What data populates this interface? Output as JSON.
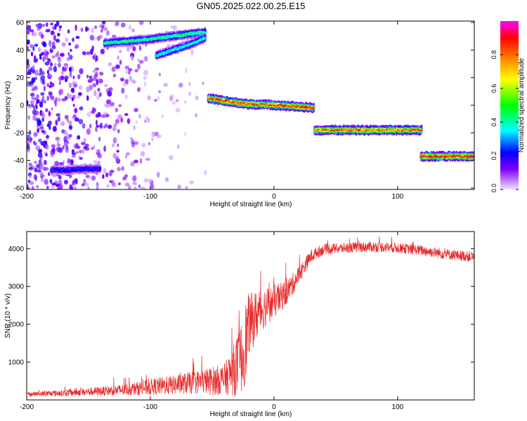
{
  "figure": {
    "title": "GN05.2025.022.00.25.E15"
  },
  "chart_data": [
    {
      "type": "heatmap",
      "xlabel": "Height of straight line (km)",
      "ylabel": "Frequency (Hz)",
      "xlim": [
        -200,
        162
      ],
      "ylim": [
        -61,
        61
      ],
      "x_ticks": [
        -200,
        -100,
        0,
        100
      ],
      "y_ticks": [
        60,
        40,
        20,
        0,
        -20,
        -40,
        -60
      ],
      "colorbar": {
        "label": "Normalized spectral amplitude",
        "range": [
          0,
          1
        ],
        "ticks": [
          0.0,
          0.2,
          0.4,
          0.6,
          0.8
        ],
        "tick_labels": [
          "0.0",
          "0.2",
          "0.4",
          "0.6",
          "0.8"
        ],
        "colormap": "rainbow",
        "colors": [
          "#f0e0ff",
          "#8000ff",
          "#0000ff",
          "#00ffff",
          "#00ff00",
          "#ffff00",
          "#ff8000",
          "#ff0000",
          "#ff00ff"
        ]
      },
      "ridges": [
        {
          "x_range": [
            -137,
            -55
          ],
          "frequency_hz": [
            45,
            47,
            50,
            53
          ],
          "peak_amplitude": 0.45
        },
        {
          "x_range": [
            -95,
            -55
          ],
          "frequency_hz": [
            36,
            40,
            44,
            49
          ],
          "peak_amplitude": 0.4
        },
        {
          "x_range": [
            -180,
            -140
          ],
          "frequency_hz": [
            -47,
            -47,
            -46,
            -46
          ],
          "peak_amplitude": 0.25
        },
        {
          "x_range": [
            -53,
            33
          ],
          "frequency_hz": [
            5,
            1,
            0,
            -2
          ],
          "peak_amplitude": 0.9
        },
        {
          "x_range": [
            33,
            120
          ],
          "frequency_hz": [
            -18,
            -18,
            -18,
            -18
          ],
          "peak_amplitude": 0.85
        },
        {
          "x_range": [
            119,
            162
          ],
          "frequency_hz": [
            -37,
            -37,
            -37,
            -37
          ],
          "peak_amplitude": 0.95
        }
      ],
      "background_noise": {
        "x_range": [
          -200,
          -55
        ],
        "frequency_range": [
          -61,
          61
        ],
        "amplitude": 0.15
      }
    },
    {
      "type": "line",
      "xlabel": "Height of straight line (km)",
      "ylabel": "SNR (10 * v/v)",
      "xlim": [
        -200,
        162
      ],
      "ylim": [
        0,
        4450
      ],
      "x_ticks": [
        -200,
        -100,
        0,
        100
      ],
      "y_ticks": [
        1000,
        2000,
        3000,
        4000
      ],
      "color": "#e8292a",
      "series": [
        {
          "x": [
            -200,
            -180,
            -160,
            -140,
            -120,
            -100,
            -80,
            -60,
            -50,
            -40,
            -35,
            -30,
            -25,
            -22,
            -20,
            -15,
            -10,
            -5,
            0,
            5,
            10,
            15,
            20,
            25,
            30,
            35,
            40,
            50,
            60,
            70,
            80,
            90,
            100,
            110,
            120,
            130,
            140,
            150,
            162
          ],
          "y": [
            150,
            170,
            200,
            230,
            270,
            340,
            400,
            480,
            500,
            550,
            700,
            900,
            1200,
            1700,
            2000,
            2200,
            2400,
            2500,
            2600,
            2700,
            2850,
            3050,
            3300,
            3550,
            3800,
            3900,
            3980,
            4000,
            4020,
            4040,
            4050,
            4040,
            4020,
            3980,
            3950,
            3900,
            3850,
            3820,
            3780
          ],
          "noise_amplitude": [
            60,
            80,
            100,
            120,
            160,
            220,
            260,
            320,
            380,
            420,
            600,
            800,
            1000,
            1100,
            800,
            700,
            600,
            500,
            450,
            400,
            350,
            300,
            250,
            200,
            180,
            160,
            150,
            140,
            140,
            140,
            140,
            140,
            140,
            140,
            140,
            140,
            140,
            140,
            140
          ]
        }
      ]
    }
  ]
}
